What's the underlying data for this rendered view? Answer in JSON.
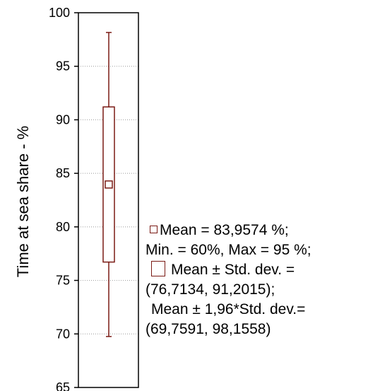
{
  "chart_data": {
    "type": "boxplot",
    "ylabel": "Time at sea share - %",
    "ylim": [
      65,
      100
    ],
    "yticks": [
      "100",
      "95",
      "90",
      "85",
      "80",
      "75",
      "70",
      "65"
    ],
    "ytick_values": [
      100,
      95,
      90,
      85,
      80,
      75,
      70,
      65
    ],
    "grid": "dotted horizontal",
    "mean": 83.9574,
    "box": [
      76.7134,
      91.2015
    ],
    "whiskers": [
      69.7591,
      98.1558
    ],
    "color": "#7a1a14",
    "legend": {
      "mean_text": "Mean = 83,9574 %;",
      "minmax_text": "Min. = 60%, Max = 95 %;",
      "std_text_1": "Mean ± Std. dev. =",
      "std_text_2": "(76,7134, 91,2015);",
      "std196_text_1": "Mean ± 1,96*Std. dev.=",
      "std196_text_2": "(69,7591, 98,1558)"
    }
  }
}
